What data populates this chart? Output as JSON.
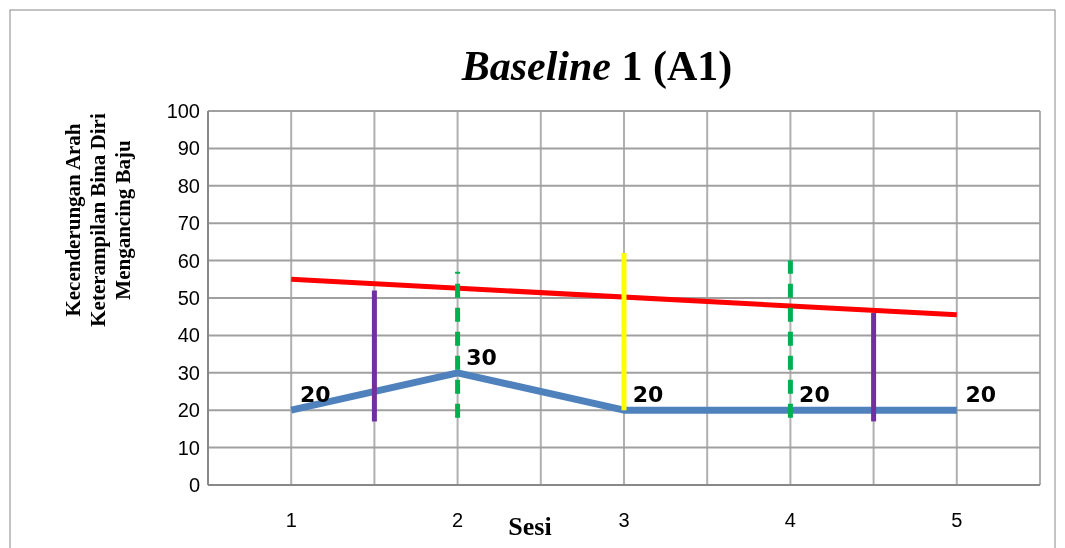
{
  "chart_data": {
    "type": "line",
    "title": "Baseline 1 (A1)",
    "xlabel": "Sesi",
    "ylabel": "Kecenderungan Arah Keterampilan Bina Diri Mengancing Baju",
    "x": [
      1,
      2,
      3,
      4,
      5
    ],
    "xlim": [
      0.5,
      5.5
    ],
    "xticks": [
      1,
      {
        "value": 1.5,
        "label": null
      },
      2,
      {
        "value": 2.5,
        "label": null
      },
      3,
      {
        "value": 3.5,
        "label": null
      },
      4,
      {
        "value": 4.5,
        "label": null
      },
      5,
      {
        "value": 5.5,
        "label": null
      }
    ],
    "ylim": [
      0,
      100
    ],
    "yticks": [
      0,
      10,
      20,
      30,
      40,
      50,
      60,
      70,
      80,
      90,
      100
    ],
    "grid": true,
    "series": [
      {
        "color": "#4f81bd",
        "values": [
          20,
          30,
          20,
          20,
          20
        ],
        "value_labels": [
          "20",
          "30",
          "20",
          "20",
          "20"
        ]
      },
      {
        "color": "#ff0000",
        "x": [
          1,
          5
        ],
        "values": [
          55,
          45.5
        ]
      },
      {
        "color": "#7030a0",
        "x": [
          1.5,
          1.5
        ],
        "values": [
          17,
          52
        ]
      },
      {
        "color": "#00b050",
        "x": [
          2,
          2
        ],
        "values": [
          18,
          57
        ],
        "line_style": "dashed"
      },
      {
        "color": "#ffff00",
        "x": [
          3,
          3
        ],
        "values": [
          20,
          62
        ]
      },
      {
        "color": "#00b050",
        "x": [
          4,
          4
        ],
        "values": [
          18,
          60
        ],
        "line_style": "dashed"
      },
      {
        "color": "#7030a0",
        "x": [
          4.5,
          4.5
        ],
        "values": [
          17,
          46
        ]
      }
    ]
  }
}
